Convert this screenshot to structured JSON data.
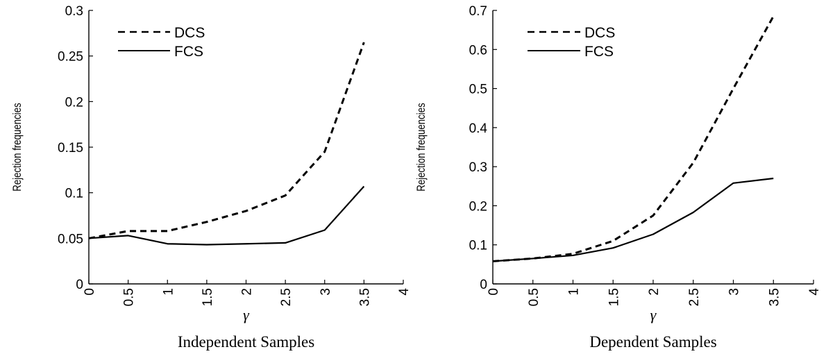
{
  "chart_data": [
    {
      "type": "line",
      "caption": "Independent Samples",
      "xlabel": "γ",
      "ylabel": "Rejection frequencies",
      "x": [
        0,
        0.5,
        1,
        1.5,
        2,
        2.5,
        3,
        3.5
      ],
      "xticks": [
        "0",
        "0.5",
        "1",
        "1.5",
        "2",
        "2.5",
        "3",
        "3.5",
        "4"
      ],
      "xlim": [
        0,
        4
      ],
      "yticks": [
        "0",
        "0.05",
        "0.1",
        "0.15",
        "0.2",
        "0.25",
        "0.3"
      ],
      "ylim": [
        0,
        0.3
      ],
      "legend_position": "top-left",
      "series": [
        {
          "name": "DCS",
          "style": "dashed",
          "values": [
            0.05,
            0.058,
            0.058,
            0.068,
            0.08,
            0.097,
            0.145,
            0.265
          ]
        },
        {
          "name": "FCS",
          "style": "solid",
          "values": [
            0.05,
            0.053,
            0.044,
            0.043,
            0.044,
            0.045,
            0.059,
            0.107
          ]
        }
      ]
    },
    {
      "type": "line",
      "caption": "Dependent Samples",
      "xlabel": "γ",
      "ylabel": "Rejection frequencies",
      "x": [
        0,
        0.5,
        1,
        1.5,
        2,
        2.5,
        3,
        3.5
      ],
      "xticks": [
        "0",
        "0.5",
        "1",
        "1.5",
        "2",
        "2.5",
        "3",
        "3.5",
        "4"
      ],
      "xlim": [
        0,
        4
      ],
      "yticks": [
        "0",
        "0.1",
        "0.2",
        "0.3",
        "0.4",
        "0.5",
        "0.6",
        "0.7"
      ],
      "ylim": [
        0,
        0.7
      ],
      "legend_position": "top-left",
      "series": [
        {
          "name": "DCS",
          "style": "dashed",
          "values": [
            0.058,
            0.065,
            0.077,
            0.11,
            0.175,
            0.31,
            0.5,
            0.685
          ]
        },
        {
          "name": "FCS",
          "style": "solid",
          "values": [
            0.058,
            0.065,
            0.073,
            0.092,
            0.127,
            0.183,
            0.258,
            0.27
          ]
        }
      ]
    }
  ]
}
